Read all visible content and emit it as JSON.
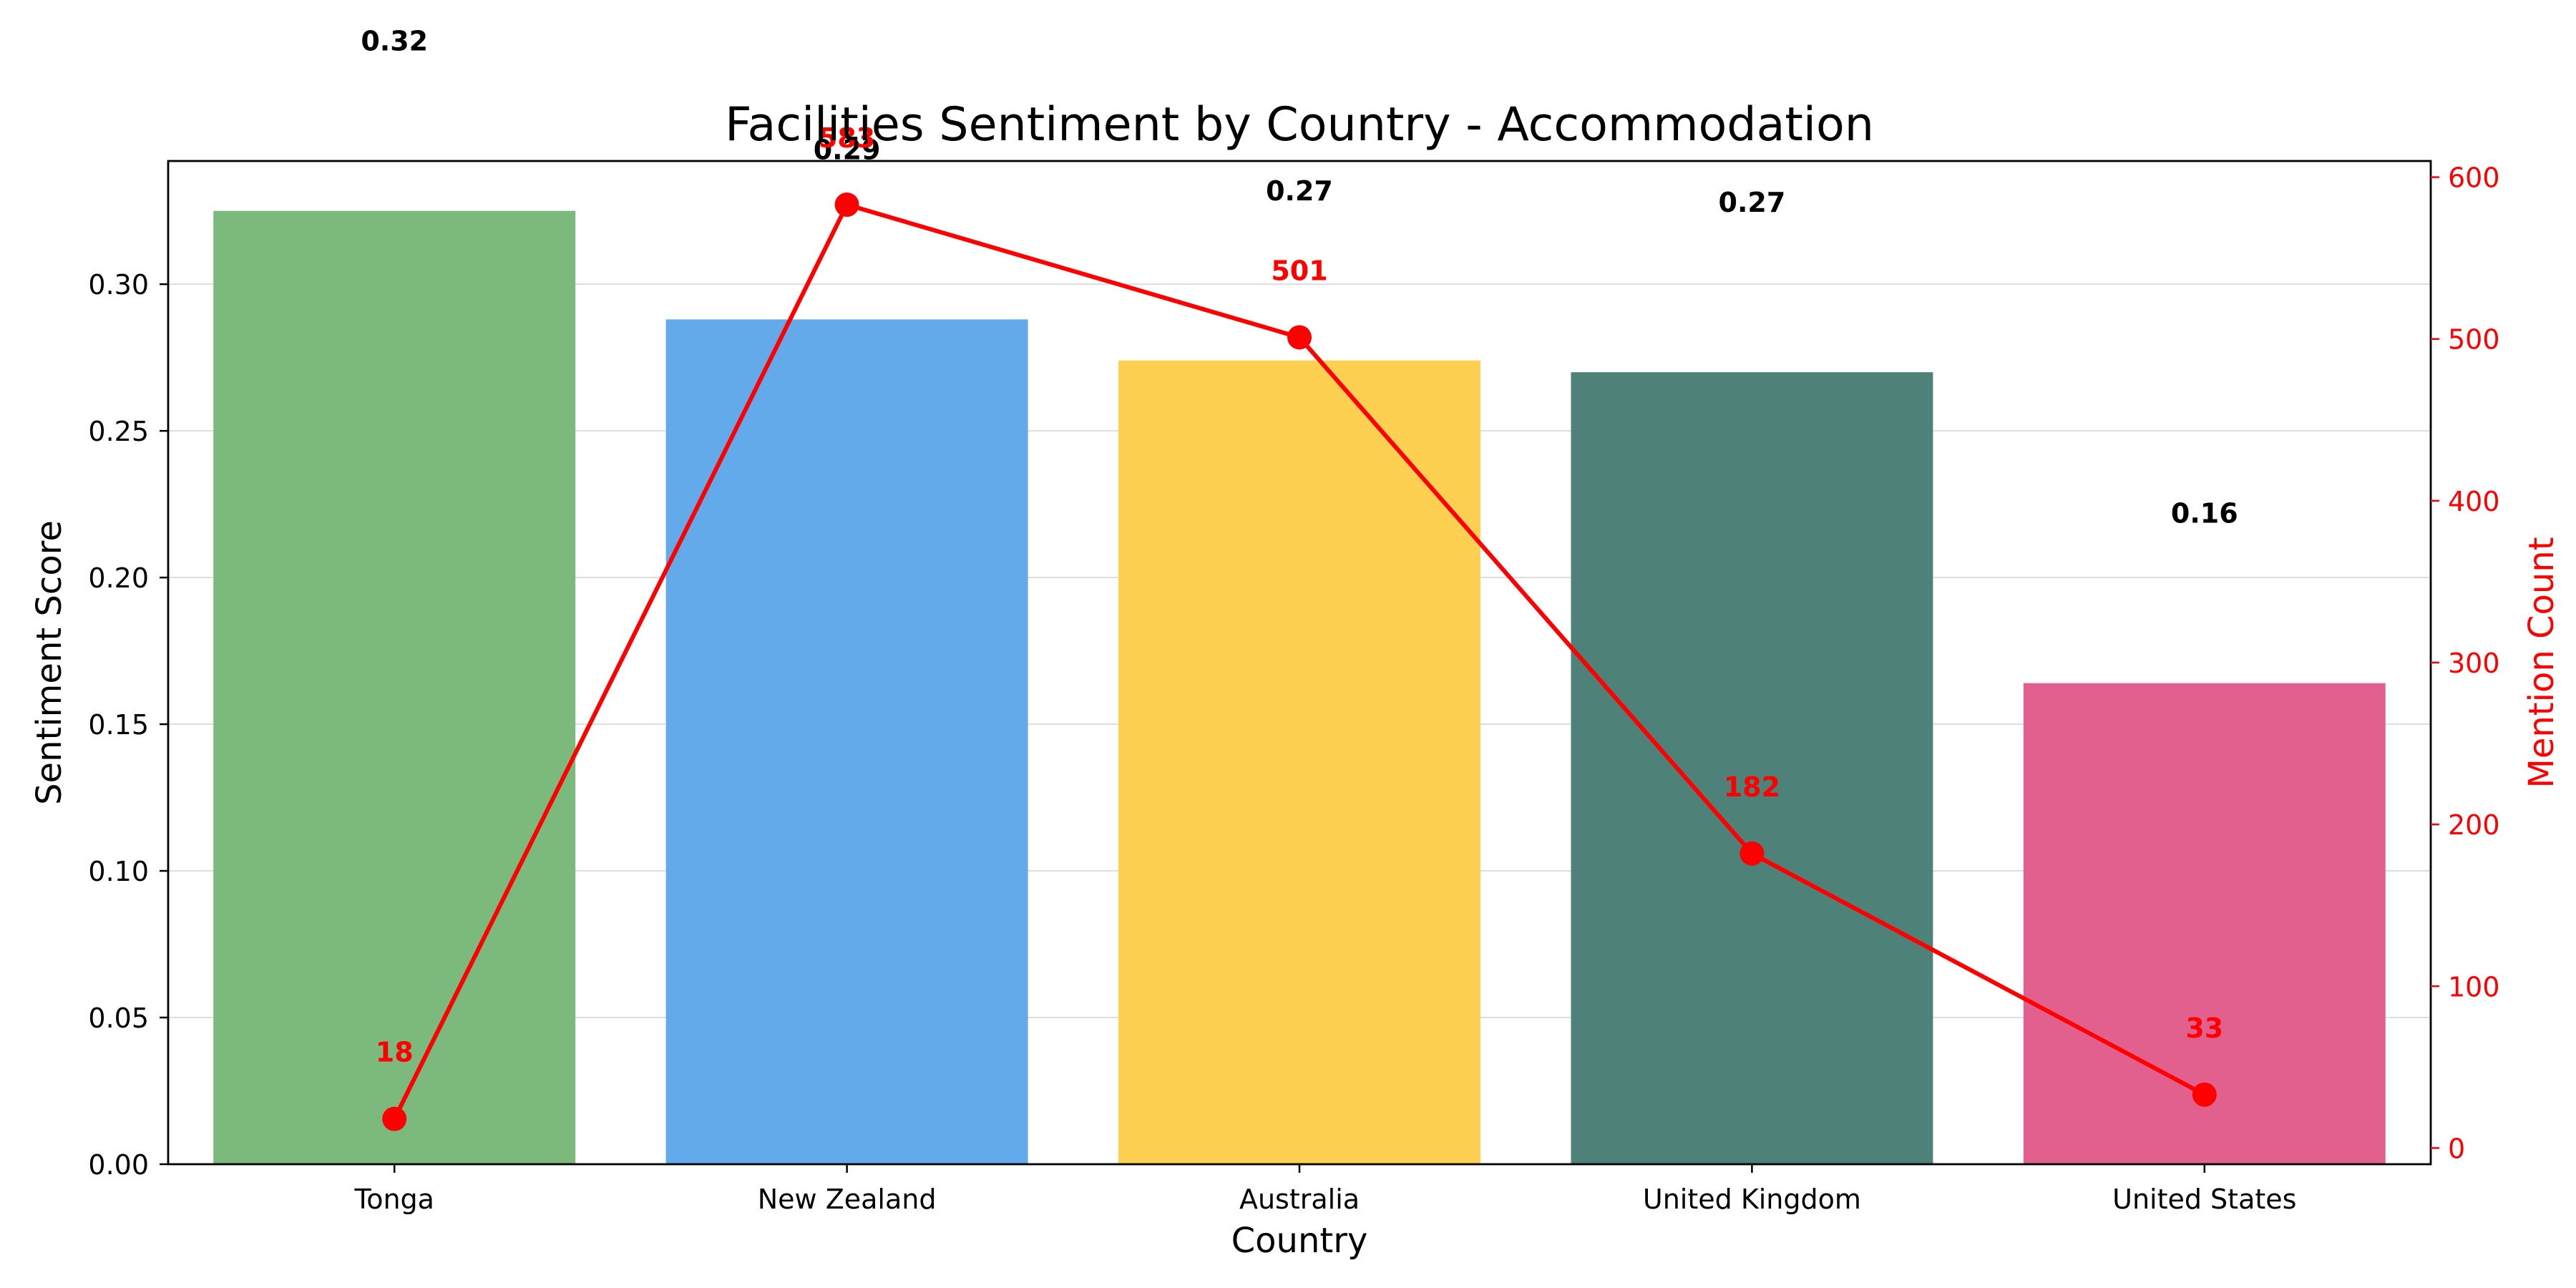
{
  "chart_data": {
    "type": "bar",
    "title": "Facilities Sentiment by Country - Accommodation",
    "xlabel": "Country",
    "ylabel": "Sentiment Score",
    "y2label": "Mention Count",
    "categories": [
      "Tonga",
      "New Zealand",
      "Australia",
      "United Kingdom",
      "United States"
    ],
    "series": [
      {
        "type": "bar",
        "axis": "left",
        "values": [
          0.325,
          0.288,
          0.274,
          0.27,
          0.164
        ],
        "labels": [
          "0.32",
          "0.29",
          "0.27",
          "0.27",
          "0.16"
        ],
        "colors": [
          "#7bb97c",
          "#62aaea",
          "#fed051",
          "#4e8278",
          "#e2608e"
        ]
      },
      {
        "type": "line",
        "axis": "right",
        "values": [
          18,
          583,
          501,
          182,
          33
        ],
        "labels": [
          "18",
          "583",
          "501",
          "182",
          "33"
        ],
        "color": "#ff0000"
      }
    ],
    "ylim": [
      0,
      0.342
    ],
    "y2lim": [
      -10,
      610
    ],
    "yticks": [
      "0.00",
      "0.05",
      "0.10",
      "0.15",
      "0.20",
      "0.25",
      "0.30"
    ],
    "y2ticks": [
      "0",
      "100",
      "200",
      "300",
      "400",
      "500",
      "600"
    ],
    "grid": "y",
    "legend": "none"
  }
}
